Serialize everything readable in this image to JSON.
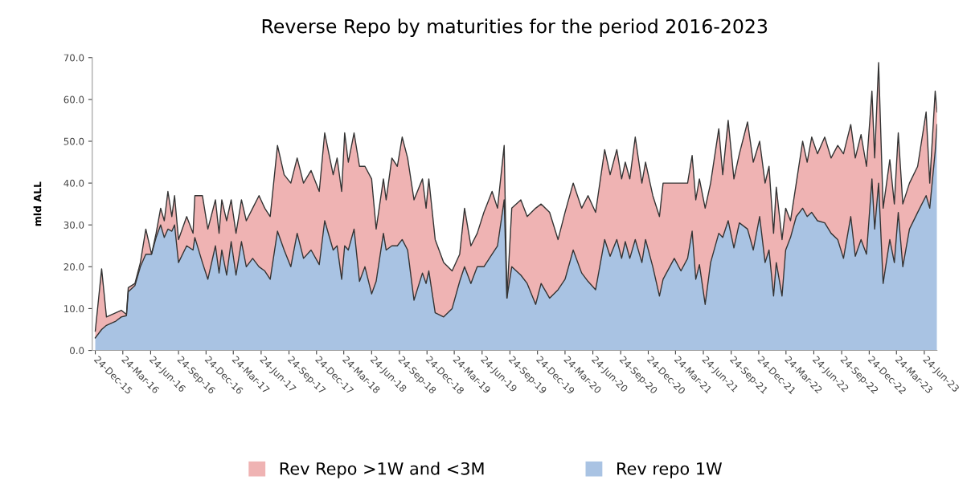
{
  "chart_data": {
    "type": "area",
    "stacked": true,
    "title": "Reverse Repo by maturities for the period 2016-2023",
    "ylabel": "mld ALL",
    "x": [
      "2015-12-24",
      "2016-01-14",
      "2016-01-30",
      "2016-03-01",
      "2016-03-19",
      "2016-04-05",
      "2016-04-11",
      "2016-05-03",
      "2016-05-21",
      "2016-06-08",
      "2016-06-27",
      "2016-07-12",
      "2016-07-27",
      "2016-08-08",
      "2016-08-20",
      "2016-09-02",
      "2016-09-11",
      "2016-09-24",
      "2016-10-21",
      "2016-11-11",
      "2016-11-17",
      "2016-12-12",
      "2016-12-30",
      "2017-01-24",
      "2017-02-05",
      "2017-02-14",
      "2017-03-02",
      "2017-03-17",
      "2017-04-02",
      "2017-04-20",
      "2017-05-06",
      "2017-05-27",
      "2017-06-17",
      "2017-07-06",
      "2017-07-24",
      "2017-08-17",
      "2017-09-08",
      "2017-09-30",
      "2017-10-21",
      "2017-11-11",
      "2017-12-06",
      "2018-01-02",
      "2018-01-20",
      "2018-02-17",
      "2018-03-02",
      "2018-03-17",
      "2018-03-27",
      "2018-04-08",
      "2018-04-27",
      "2018-05-15",
      "2018-06-02",
      "2018-06-24",
      "2018-07-09",
      "2018-08-02",
      "2018-08-11",
      "2018-08-30",
      "2018-09-17",
      "2018-10-03",
      "2018-10-21",
      "2018-11-11",
      "2018-12-09",
      "2018-12-21",
      "2018-12-30",
      "2019-01-20",
      "2019-02-17",
      "2019-03-17",
      "2019-04-11",
      "2019-04-27",
      "2019-05-18",
      "2019-06-08",
      "2019-06-30",
      "2019-07-27",
      "2019-08-14",
      "2019-09-05",
      "2019-09-14",
      "2019-09-30",
      "2019-10-30",
      "2019-11-20",
      "2019-12-18",
      "2020-01-05",
      "2020-02-02",
      "2020-03-01",
      "2020-03-24",
      "2020-04-20",
      "2020-05-18",
      "2020-06-08",
      "2020-07-03",
      "2020-08-02",
      "2020-08-20",
      "2020-09-11",
      "2020-09-27",
      "2020-10-09",
      "2020-10-24",
      "2020-11-11",
      "2020-12-03",
      "2020-12-15",
      "2021-01-08",
      "2021-01-30",
      "2021-02-11",
      "2021-03-20",
      "2021-04-11",
      "2021-05-03",
      "2021-05-18",
      "2021-05-30",
      "2021-06-11",
      "2021-06-30",
      "2021-07-18",
      "2021-08-14",
      "2021-08-27",
      "2021-09-14",
      "2021-10-03",
      "2021-10-21",
      "2021-11-17",
      "2021-12-06",
      "2021-12-27",
      "2022-01-14",
      "2022-01-27",
      "2022-02-11",
      "2022-02-20",
      "2022-03-11",
      "2022-03-23",
      "2022-04-08",
      "2022-04-27",
      "2022-05-18",
      "2022-06-02",
      "2022-06-17",
      "2022-07-06",
      "2022-07-30",
      "2022-08-20",
      "2022-09-11",
      "2022-09-30",
      "2022-10-24",
      "2022-11-08",
      "2022-11-27",
      "2022-12-15",
      "2023-01-02",
      "2023-01-11",
      "2023-01-24",
      "2023-02-08",
      "2023-03-02",
      "2023-03-17",
      "2023-03-30",
      "2023-04-14",
      "2023-05-06",
      "2023-06-02",
      "2023-06-30",
      "2023-07-12",
      "2023-07-30",
      "2023-08-05"
    ],
    "series": [
      {
        "name": "Rev repo 1W",
        "color": "#a9c3e3",
        "values": [
          3,
          5,
          6,
          7,
          8,
          8.3,
          14,
          15.5,
          20,
          23,
          23,
          27,
          30,
          27,
          29,
          28.5,
          30,
          21,
          25,
          24,
          27,
          21,
          17,
          25,
          18.5,
          24,
          18,
          26,
          18,
          26,
          20,
          22,
          20,
          19,
          17,
          28.5,
          24,
          20,
          28,
          22,
          24,
          20.5,
          31,
          24,
          25,
          17,
          25,
          24,
          29,
          16.5,
          20,
          13.5,
          16.5,
          28,
          24,
          25,
          25,
          26.5,
          24,
          12,
          18.5,
          16,
          19,
          9,
          8,
          10,
          16.5,
          20,
          16,
          20,
          20,
          23,
          25,
          36,
          12.5,
          20,
          18,
          16,
          11,
          16,
          12.5,
          14.5,
          17,
          24,
          18.5,
          16.5,
          14.5,
          26.5,
          22.5,
          26.5,
          22,
          26,
          22,
          26.5,
          21,
          26.5,
          20,
          13,
          17,
          22,
          19,
          22,
          28.5,
          17,
          20.5,
          11,
          21,
          28,
          27,
          31,
          24.5,
          30.5,
          29,
          24,
          32,
          21,
          24,
          13,
          21,
          13,
          24,
          27,
          32,
          34,
          32,
          33,
          31,
          30.5,
          28,
          26.5,
          22,
          32,
          22.5,
          26.5,
          23,
          41,
          29,
          40,
          16,
          26.5,
          21,
          33,
          20,
          29,
          33,
          37,
          34,
          47.6,
          54
        ]
      },
      {
        "name": "Rev Repo >1W and <3M",
        "color": "#efb3b3",
        "values": [
          1.6,
          14.5,
          2,
          2,
          1.6,
          0.3,
          1,
          0.5,
          1,
          6,
          0,
          1,
          4,
          4,
          9,
          3.5,
          7,
          5.5,
          7,
          4,
          10,
          16,
          12,
          11,
          9.5,
          12,
          13,
          10,
          10,
          10,
          11,
          12,
          17,
          15,
          15,
          20.5,
          18,
          20,
          18,
          18,
          19,
          17.5,
          21,
          18,
          21,
          21,
          27,
          21,
          23,
          27.5,
          24,
          27.5,
          12.5,
          13,
          12,
          21,
          19,
          24.5,
          22,
          24,
          22.5,
          18,
          22,
          17.5,
          13,
          9,
          6.5,
          14,
          9,
          8,
          13,
          15,
          9,
          13,
          0,
          14,
          18,
          16,
          23,
          19,
          20.5,
          12,
          16,
          16,
          15.5,
          20.5,
          18.5,
          21.5,
          19.5,
          21.5,
          19,
          19,
          19,
          24.5,
          19,
          18.5,
          17,
          19,
          23,
          18,
          21,
          18,
          18.1,
          19,
          20.5,
          23,
          19,
          25,
          15,
          24,
          16.5,
          16.5,
          25.6,
          21,
          18,
          19,
          20,
          15,
          18,
          13.5,
          10,
          4,
          8,
          16,
          13,
          18,
          16,
          20.5,
          18,
          22.5,
          25,
          22,
          23.5,
          25.1,
          21,
          21,
          17,
          28.8,
          18,
          19.1,
          14,
          19,
          15,
          11,
          11,
          20,
          6,
          14.4,
          3
        ]
      }
    ],
    "ylim": [
      0,
      70
    ],
    "yticks": [
      {
        "value": 0,
        "label": "0.0"
      },
      {
        "value": 10,
        "label": "10.0"
      },
      {
        "value": 20,
        "label": "20.0"
      },
      {
        "value": 30,
        "label": "30.0"
      },
      {
        "value": 40,
        "label": "40.0"
      },
      {
        "value": 50,
        "label": "50.0"
      },
      {
        "value": 60,
        "label": "60.0"
      },
      {
        "value": 70,
        "label": "70.0"
      }
    ],
    "xticks": [
      {
        "value": "2015-12-24",
        "label": "24-Dec-15"
      },
      {
        "value": "2016-03-24",
        "label": "24-Mar-16"
      },
      {
        "value": "2016-06-24",
        "label": "24-Jun-16"
      },
      {
        "value": "2016-09-24",
        "label": "24-Sep-16"
      },
      {
        "value": "2016-12-24",
        "label": "24-Dec-16"
      },
      {
        "value": "2017-03-24",
        "label": "24-Mar-17"
      },
      {
        "value": "2017-06-24",
        "label": "24-Jun-17"
      },
      {
        "value": "2017-09-24",
        "label": "24-Sep-17"
      },
      {
        "value": "2017-12-24",
        "label": "24-Dec-17"
      },
      {
        "value": "2018-03-24",
        "label": "24-Mar-18"
      },
      {
        "value": "2018-06-24",
        "label": "24-Jun-18"
      },
      {
        "value": "2018-09-24",
        "label": "24-Sep-18"
      },
      {
        "value": "2018-12-24",
        "label": "24-Dec-18"
      },
      {
        "value": "2019-03-24",
        "label": "24-Mar-19"
      },
      {
        "value": "2019-06-24",
        "label": "24-Jun-19"
      },
      {
        "value": "2019-09-24",
        "label": "24-Sep-19"
      },
      {
        "value": "2019-12-24",
        "label": "24-Dec-19"
      },
      {
        "value": "2020-03-24",
        "label": "24-Mar-20"
      },
      {
        "value": "2020-06-24",
        "label": "24-Jun-20"
      },
      {
        "value": "2020-09-24",
        "label": "24-Sep-20"
      },
      {
        "value": "2020-12-24",
        "label": "24-Dec-20"
      },
      {
        "value": "2021-03-24",
        "label": "24-Mar-21"
      },
      {
        "value": "2021-06-24",
        "label": "24-Jun-21"
      },
      {
        "value": "2021-09-24",
        "label": "24-Sep-21"
      },
      {
        "value": "2021-12-24",
        "label": "24-Dec-21"
      },
      {
        "value": "2022-03-24",
        "label": "24-Mar-22"
      },
      {
        "value": "2022-06-24",
        "label": "24-Jun-22"
      },
      {
        "value": "2022-09-24",
        "label": "24-Sep-22"
      },
      {
        "value": "2022-12-24",
        "label": "24-Dec-22"
      },
      {
        "value": "2023-03-24",
        "label": "24-Mar-23"
      },
      {
        "value": "2023-06-24",
        "label": "24-Jun-23"
      }
    ],
    "xlim": [
      "2015-12-14",
      "2023-08-05"
    ],
    "grid": false,
    "legend": "bottom"
  }
}
